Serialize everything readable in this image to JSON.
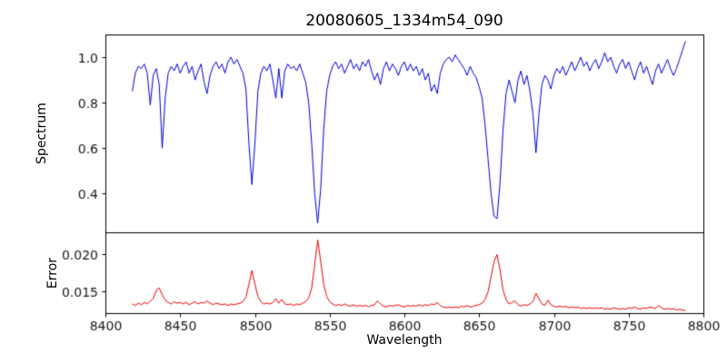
{
  "figure": {
    "background": "#ffffff",
    "axis_color": "#000000",
    "tick_label_color": "#1a1a1a"
  },
  "chart_data": {
    "type": "line",
    "title": "20080605_1334m54_090",
    "xlabel": "Wavelength",
    "xlim": [
      8400,
      8800
    ],
    "xticks": [
      8400,
      8450,
      8500,
      8550,
      8600,
      8650,
      8700,
      8750,
      8800
    ],
    "xtick_labels": [
      "8400",
      "8450",
      "8500",
      "8550",
      "8600",
      "8650",
      "8700",
      "8750",
      "8800"
    ],
    "grid": false,
    "legend": "none",
    "panels": [
      {
        "ylabel": "Spectrum",
        "ylim": [
          0.23,
          1.1
        ],
        "yticks": [
          0.4,
          0.6,
          0.8,
          1.0
        ],
        "ytick_labels": [
          "0.4",
          "0.6",
          "0.8",
          "1.0"
        ]
      },
      {
        "ylabel": "Error",
        "ylim": [
          0.0122,
          0.0228
        ],
        "yticks": [
          0.015,
          0.02
        ],
        "ytick_labels": [
          "0.015",
          "0.020"
        ]
      }
    ],
    "x": [
      8418,
      8420,
      8422,
      8424,
      8426,
      8428,
      8430,
      8432,
      8434,
      8436,
      8438,
      8440,
      8442,
      8444,
      8446,
      8448,
      8450,
      8452,
      8454,
      8456,
      8458,
      8460,
      8462,
      8464,
      8466,
      8468,
      8470,
      8472,
      8474,
      8476,
      8478,
      8480,
      8482,
      8484,
      8486,
      8488,
      8490,
      8492,
      8494,
      8496,
      8498,
      8500,
      8502,
      8504,
      8506,
      8508,
      8510,
      8512,
      8514,
      8516,
      8518,
      8520,
      8522,
      8524,
      8526,
      8528,
      8530,
      8532,
      8534,
      8536,
      8538,
      8540,
      8542,
      8544,
      8546,
      8548,
      8550,
      8552,
      8554,
      8556,
      8558,
      8560,
      8562,
      8564,
      8566,
      8568,
      8570,
      8572,
      8574,
      8576,
      8578,
      8580,
      8582,
      8584,
      8586,
      8588,
      8590,
      8592,
      8594,
      8596,
      8598,
      8600,
      8602,
      8604,
      8606,
      8608,
      8610,
      8612,
      8614,
      8616,
      8618,
      8620,
      8622,
      8624,
      8626,
      8628,
      8630,
      8632,
      8634,
      8636,
      8638,
      8640,
      8642,
      8644,
      8646,
      8648,
      8650,
      8652,
      8654,
      8656,
      8658,
      8660,
      8662,
      8664,
      8666,
      8668,
      8670,
      8672,
      8674,
      8676,
      8678,
      8680,
      8682,
      8684,
      8686,
      8688,
      8690,
      8692,
      8694,
      8696,
      8698,
      8700,
      8702,
      8704,
      8706,
      8708,
      8710,
      8712,
      8714,
      8716,
      8718,
      8720,
      8722,
      8724,
      8726,
      8728,
      8730,
      8732,
      8734,
      8736,
      8738,
      8740,
      8742,
      8744,
      8746,
      8748,
      8750,
      8752,
      8754,
      8756,
      8758,
      8760,
      8762,
      8764,
      8766,
      8768,
      8770,
      8772,
      8774,
      8776,
      8778,
      8780,
      8782,
      8784,
      8786,
      8788
    ],
    "series": [
      {
        "name": "spectrum",
        "panel": 0,
        "color": "#0000dd",
        "values": [
          0.85,
          0.93,
          0.96,
          0.95,
          0.97,
          0.93,
          0.79,
          0.92,
          0.95,
          0.88,
          0.6,
          0.82,
          0.93,
          0.96,
          0.94,
          0.97,
          0.93,
          0.96,
          0.98,
          0.93,
          0.96,
          0.9,
          0.94,
          0.97,
          0.89,
          0.84,
          0.92,
          0.96,
          0.98,
          0.95,
          0.97,
          0.93,
          0.98,
          1.0,
          0.97,
          0.99,
          0.96,
          0.93,
          0.86,
          0.62,
          0.44,
          0.62,
          0.85,
          0.93,
          0.96,
          0.94,
          0.97,
          0.9,
          0.82,
          0.95,
          0.82,
          0.94,
          0.97,
          0.95,
          0.96,
          0.94,
          0.97,
          0.93,
          0.89,
          0.8,
          0.62,
          0.4,
          0.27,
          0.42,
          0.68,
          0.85,
          0.92,
          0.96,
          0.98,
          0.95,
          0.97,
          0.93,
          0.96,
          0.99,
          0.95,
          0.97,
          0.94,
          0.98,
          0.96,
          0.99,
          0.94,
          0.9,
          0.93,
          0.88,
          0.95,
          0.98,
          0.94,
          0.97,
          0.95,
          0.92,
          0.96,
          0.98,
          0.94,
          0.97,
          0.94,
          0.96,
          0.92,
          0.95,
          0.9,
          0.93,
          0.85,
          0.88,
          0.84,
          0.93,
          0.97,
          0.99,
          1.0,
          0.98,
          1.01,
          0.99,
          0.97,
          0.95,
          0.92,
          0.96,
          0.93,
          0.91,
          0.87,
          0.82,
          0.7,
          0.55,
          0.4,
          0.3,
          0.29,
          0.45,
          0.68,
          0.84,
          0.9,
          0.85,
          0.8,
          0.9,
          0.94,
          0.88,
          0.92,
          0.85,
          0.75,
          0.58,
          0.75,
          0.88,
          0.92,
          0.9,
          0.86,
          0.92,
          0.95,
          0.93,
          0.96,
          0.92,
          0.95,
          0.98,
          0.94,
          0.97,
          1.0,
          0.96,
          0.98,
          0.94,
          0.97,
          0.99,
          0.95,
          0.98,
          1.02,
          0.98,
          1.0,
          0.96,
          0.93,
          0.97,
          0.99,
          0.95,
          0.98,
          0.94,
          0.9,
          0.95,
          0.98,
          0.93,
          0.96,
          0.92,
          0.88,
          0.94,
          0.97,
          0.93,
          0.96,
          0.99,
          0.95,
          0.92,
          0.95,
          0.99,
          1.03,
          1.07
        ]
      },
      {
        "name": "error",
        "panel": 1,
        "color": "#ee0000",
        "values": [
          0.0134,
          0.0132,
          0.0135,
          0.0133,
          0.0136,
          0.0134,
          0.0138,
          0.0141,
          0.0152,
          0.0155,
          0.0146,
          0.0139,
          0.0136,
          0.0134,
          0.0137,
          0.0135,
          0.0136,
          0.0134,
          0.0136,
          0.0133,
          0.0135,
          0.0137,
          0.0134,
          0.0136,
          0.0135,
          0.0138,
          0.0135,
          0.0133,
          0.0135,
          0.0134,
          0.0133,
          0.0134,
          0.0132,
          0.0134,
          0.0133,
          0.0134,
          0.0135,
          0.0137,
          0.0143,
          0.016,
          0.0178,
          0.016,
          0.0144,
          0.0137,
          0.0134,
          0.0135,
          0.0134,
          0.0136,
          0.0141,
          0.0135,
          0.014,
          0.0134,
          0.0133,
          0.0134,
          0.0132,
          0.0134,
          0.0133,
          0.0135,
          0.0137,
          0.0142,
          0.0155,
          0.0185,
          0.0218,
          0.019,
          0.016,
          0.0144,
          0.0137,
          0.0134,
          0.0132,
          0.0133,
          0.0132,
          0.0134,
          0.0132,
          0.0131,
          0.0133,
          0.0131,
          0.0132,
          0.0131,
          0.0132,
          0.013,
          0.0132,
          0.0133,
          0.0138,
          0.0134,
          0.0131,
          0.013,
          0.0132,
          0.0131,
          0.0132,
          0.0133,
          0.0131,
          0.013,
          0.0132,
          0.0131,
          0.0132,
          0.0131,
          0.0133,
          0.0131,
          0.0133,
          0.0132,
          0.0134,
          0.0133,
          0.0136,
          0.0132,
          0.013,
          0.0129,
          0.013,
          0.0129,
          0.013,
          0.0129,
          0.0131,
          0.013,
          0.0132,
          0.013,
          0.0131,
          0.0132,
          0.0133,
          0.0135,
          0.014,
          0.015,
          0.017,
          0.019,
          0.0199,
          0.0178,
          0.0152,
          0.014,
          0.0134,
          0.0136,
          0.0138,
          0.0133,
          0.0131,
          0.0133,
          0.0132,
          0.0134,
          0.0137,
          0.0148,
          0.0141,
          0.0134,
          0.0132,
          0.0139,
          0.0133,
          0.0131,
          0.013,
          0.0131,
          0.013,
          0.0131,
          0.0129,
          0.013,
          0.0129,
          0.013,
          0.0128,
          0.0129,
          0.0128,
          0.0129,
          0.0128,
          0.0129,
          0.0128,
          0.0129,
          0.0127,
          0.0128,
          0.0127,
          0.0129,
          0.0128,
          0.0127,
          0.0128,
          0.0127,
          0.0129,
          0.0128,
          0.013,
          0.0128,
          0.0127,
          0.0129,
          0.0128,
          0.013,
          0.0129,
          0.0128,
          0.0132,
          0.0129,
          0.0127,
          0.0128,
          0.0127,
          0.0128,
          0.0126,
          0.0127,
          0.0126,
          0.0125
        ]
      }
    ]
  }
}
